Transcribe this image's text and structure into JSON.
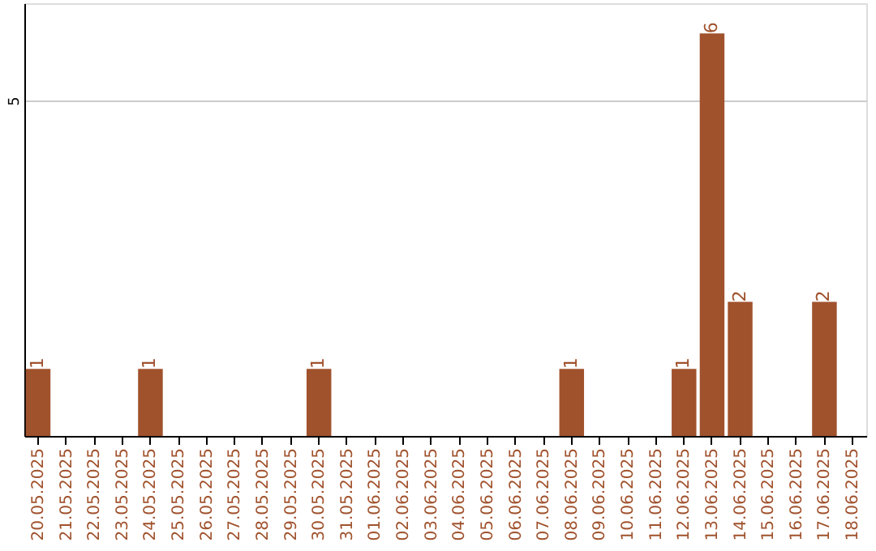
{
  "chart_data": {
    "type": "bar",
    "categories": [
      "20.05.2025",
      "21.05.2025",
      "22.05.2025",
      "23.05.2025",
      "24.05.2025",
      "25.05.2025",
      "26.05.2025",
      "27.05.2025",
      "28.05.2025",
      "29.05.2025",
      "30.05.2025",
      "31.05.2025",
      "01.06.2025",
      "02.06.2025",
      "03.06.2025",
      "04.06.2025",
      "05.06.2025",
      "06.06.2025",
      "07.06.2025",
      "08.06.2025",
      "09.06.2025",
      "10.06.2025",
      "11.06.2025",
      "12.06.2025",
      "13.06.2025",
      "14.06.2025",
      "15.06.2025",
      "16.06.2025",
      "17.06.2025",
      "18.06.2025"
    ],
    "values": [
      1,
      0,
      0,
      0,
      1,
      0,
      0,
      0,
      0,
      0,
      1,
      0,
      0,
      0,
      0,
      0,
      0,
      0,
      0,
      1,
      0,
      0,
      0,
      1,
      6,
      2,
      0,
      0,
      2,
      0
    ],
    "value_labels": [
      "1",
      null,
      null,
      null,
      "1",
      null,
      null,
      null,
      null,
      null,
      "1",
      null,
      null,
      null,
      null,
      null,
      null,
      null,
      null,
      "1",
      null,
      null,
      null,
      "1",
      "6",
      "2",
      null,
      null,
      "2",
      null
    ],
    "color": "#a0522d",
    "ylim": [
      0,
      6.45
    ],
    "yticks": [
      5
    ],
    "grid": "y"
  }
}
